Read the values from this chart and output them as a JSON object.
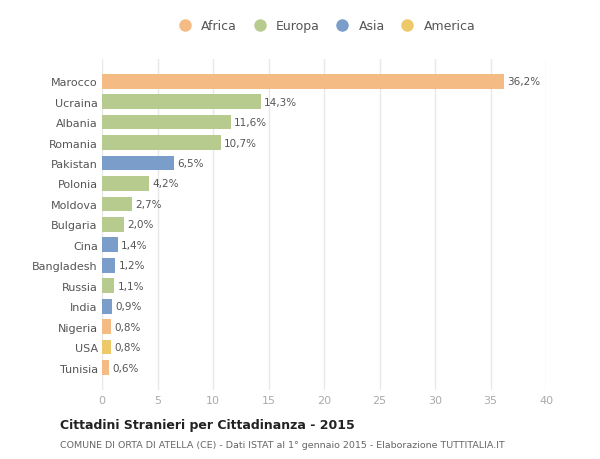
{
  "categories": [
    "Marocco",
    "Ucraina",
    "Albania",
    "Romania",
    "Pakistan",
    "Polonia",
    "Moldova",
    "Bulgaria",
    "Cina",
    "Bangladesh",
    "Russia",
    "India",
    "Nigeria",
    "USA",
    "Tunisia"
  ],
  "values": [
    36.2,
    14.3,
    11.6,
    10.7,
    6.5,
    4.2,
    2.7,
    2.0,
    1.4,
    1.2,
    1.1,
    0.9,
    0.8,
    0.8,
    0.6
  ],
  "labels": [
    "36,2%",
    "14,3%",
    "11,6%",
    "10,7%",
    "6,5%",
    "4,2%",
    "2,7%",
    "2,0%",
    "1,4%",
    "1,2%",
    "1,1%",
    "0,9%",
    "0,8%",
    "0,8%",
    "0,6%"
  ],
  "colors": [
    "#F5BB85",
    "#B8CB8E",
    "#B8CB8E",
    "#B8CB8E",
    "#7B9DC9",
    "#B8CB8E",
    "#B8CB8E",
    "#B8CB8E",
    "#7B9DC9",
    "#7B9DC9",
    "#B8CB8E",
    "#7B9DC9",
    "#F5BB85",
    "#EEC96A",
    "#F5BB85"
  ],
  "legend_labels": [
    "Africa",
    "Europa",
    "Asia",
    "America"
  ],
  "legend_colors": [
    "#F5BB85",
    "#B8CB8E",
    "#7B9DC9",
    "#EEC96A"
  ],
  "xlim": [
    0,
    40
  ],
  "xticks": [
    0,
    5,
    10,
    15,
    20,
    25,
    30,
    35,
    40
  ],
  "title": "Cittadini Stranieri per Cittadinanza - 2015",
  "subtitle": "COMUNE DI ORTA DI ATELLA (CE) - Dati ISTAT al 1° gennaio 2015 - Elaborazione TUTTITALIA.IT",
  "background_color": "#ffffff",
  "bar_height": 0.72
}
